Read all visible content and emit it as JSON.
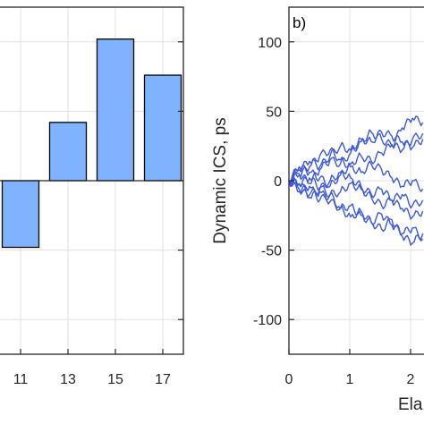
{
  "chart_data": [
    {
      "type": "bar",
      "categories": [
        "11",
        "13",
        "15",
        "17"
      ],
      "values": [
        -48,
        42,
        102,
        76
      ],
      "xticks": [
        "11",
        "13",
        "15",
        "17"
      ],
      "ylim": [
        -125,
        125
      ],
      "grid": true,
      "bar_color": "#80b3ff",
      "edge_color": "#000000"
    },
    {
      "type": "line",
      "annotation": "b)",
      "ylabel": "Dynamic ICS, ps",
      "xlabel": "Ela",
      "xticks": [
        "0",
        "1",
        "2"
      ],
      "yticks": [
        "100",
        "50",
        "0",
        "-50",
        "-100"
      ],
      "xlim": [
        0,
        2.2
      ],
      "ylim": [
        -125,
        125
      ],
      "grid": true,
      "line_color": "#3d59e0",
      "series": [
        {
          "values": [
            0,
            5,
            -2,
            8,
            15,
            12,
            20,
            28,
            35,
            30,
            25,
            38,
            45,
            42
          ]
        },
        {
          "values": [
            0,
            -6,
            -12,
            -8,
            -15,
            -20,
            -18,
            -25,
            -30,
            -35,
            -28,
            -40,
            -45,
            -38
          ]
        },
        {
          "values": [
            0,
            8,
            14,
            10,
            18,
            25,
            22,
            30,
            28,
            35,
            32,
            28,
            24,
            30
          ]
        },
        {
          "values": [
            0,
            -3,
            2,
            -5,
            -10,
            -8,
            -2,
            -6,
            -12,
            -18,
            -14,
            -20,
            -26,
            -22
          ]
        },
        {
          "values": [
            0,
            4,
            10,
            18,
            22,
            15,
            10,
            6,
            12,
            8,
            2,
            -4,
            0,
            -6
          ]
        },
        {
          "values": [
            0,
            -8,
            -4,
            -14,
            -10,
            -20,
            -26,
            -22,
            -30,
            -24,
            -32,
            -38,
            -34,
            -42
          ]
        },
        {
          "values": [
            0,
            10,
            6,
            2,
            -4,
            4,
            12,
            18,
            14,
            20,
            26,
            22,
            30,
            34
          ]
        },
        {
          "values": [
            0,
            -2,
            -10,
            -6,
            0,
            6,
            2,
            -4,
            -10,
            -6,
            -14,
            -10,
            -18,
            -14
          ]
        }
      ]
    }
  ]
}
